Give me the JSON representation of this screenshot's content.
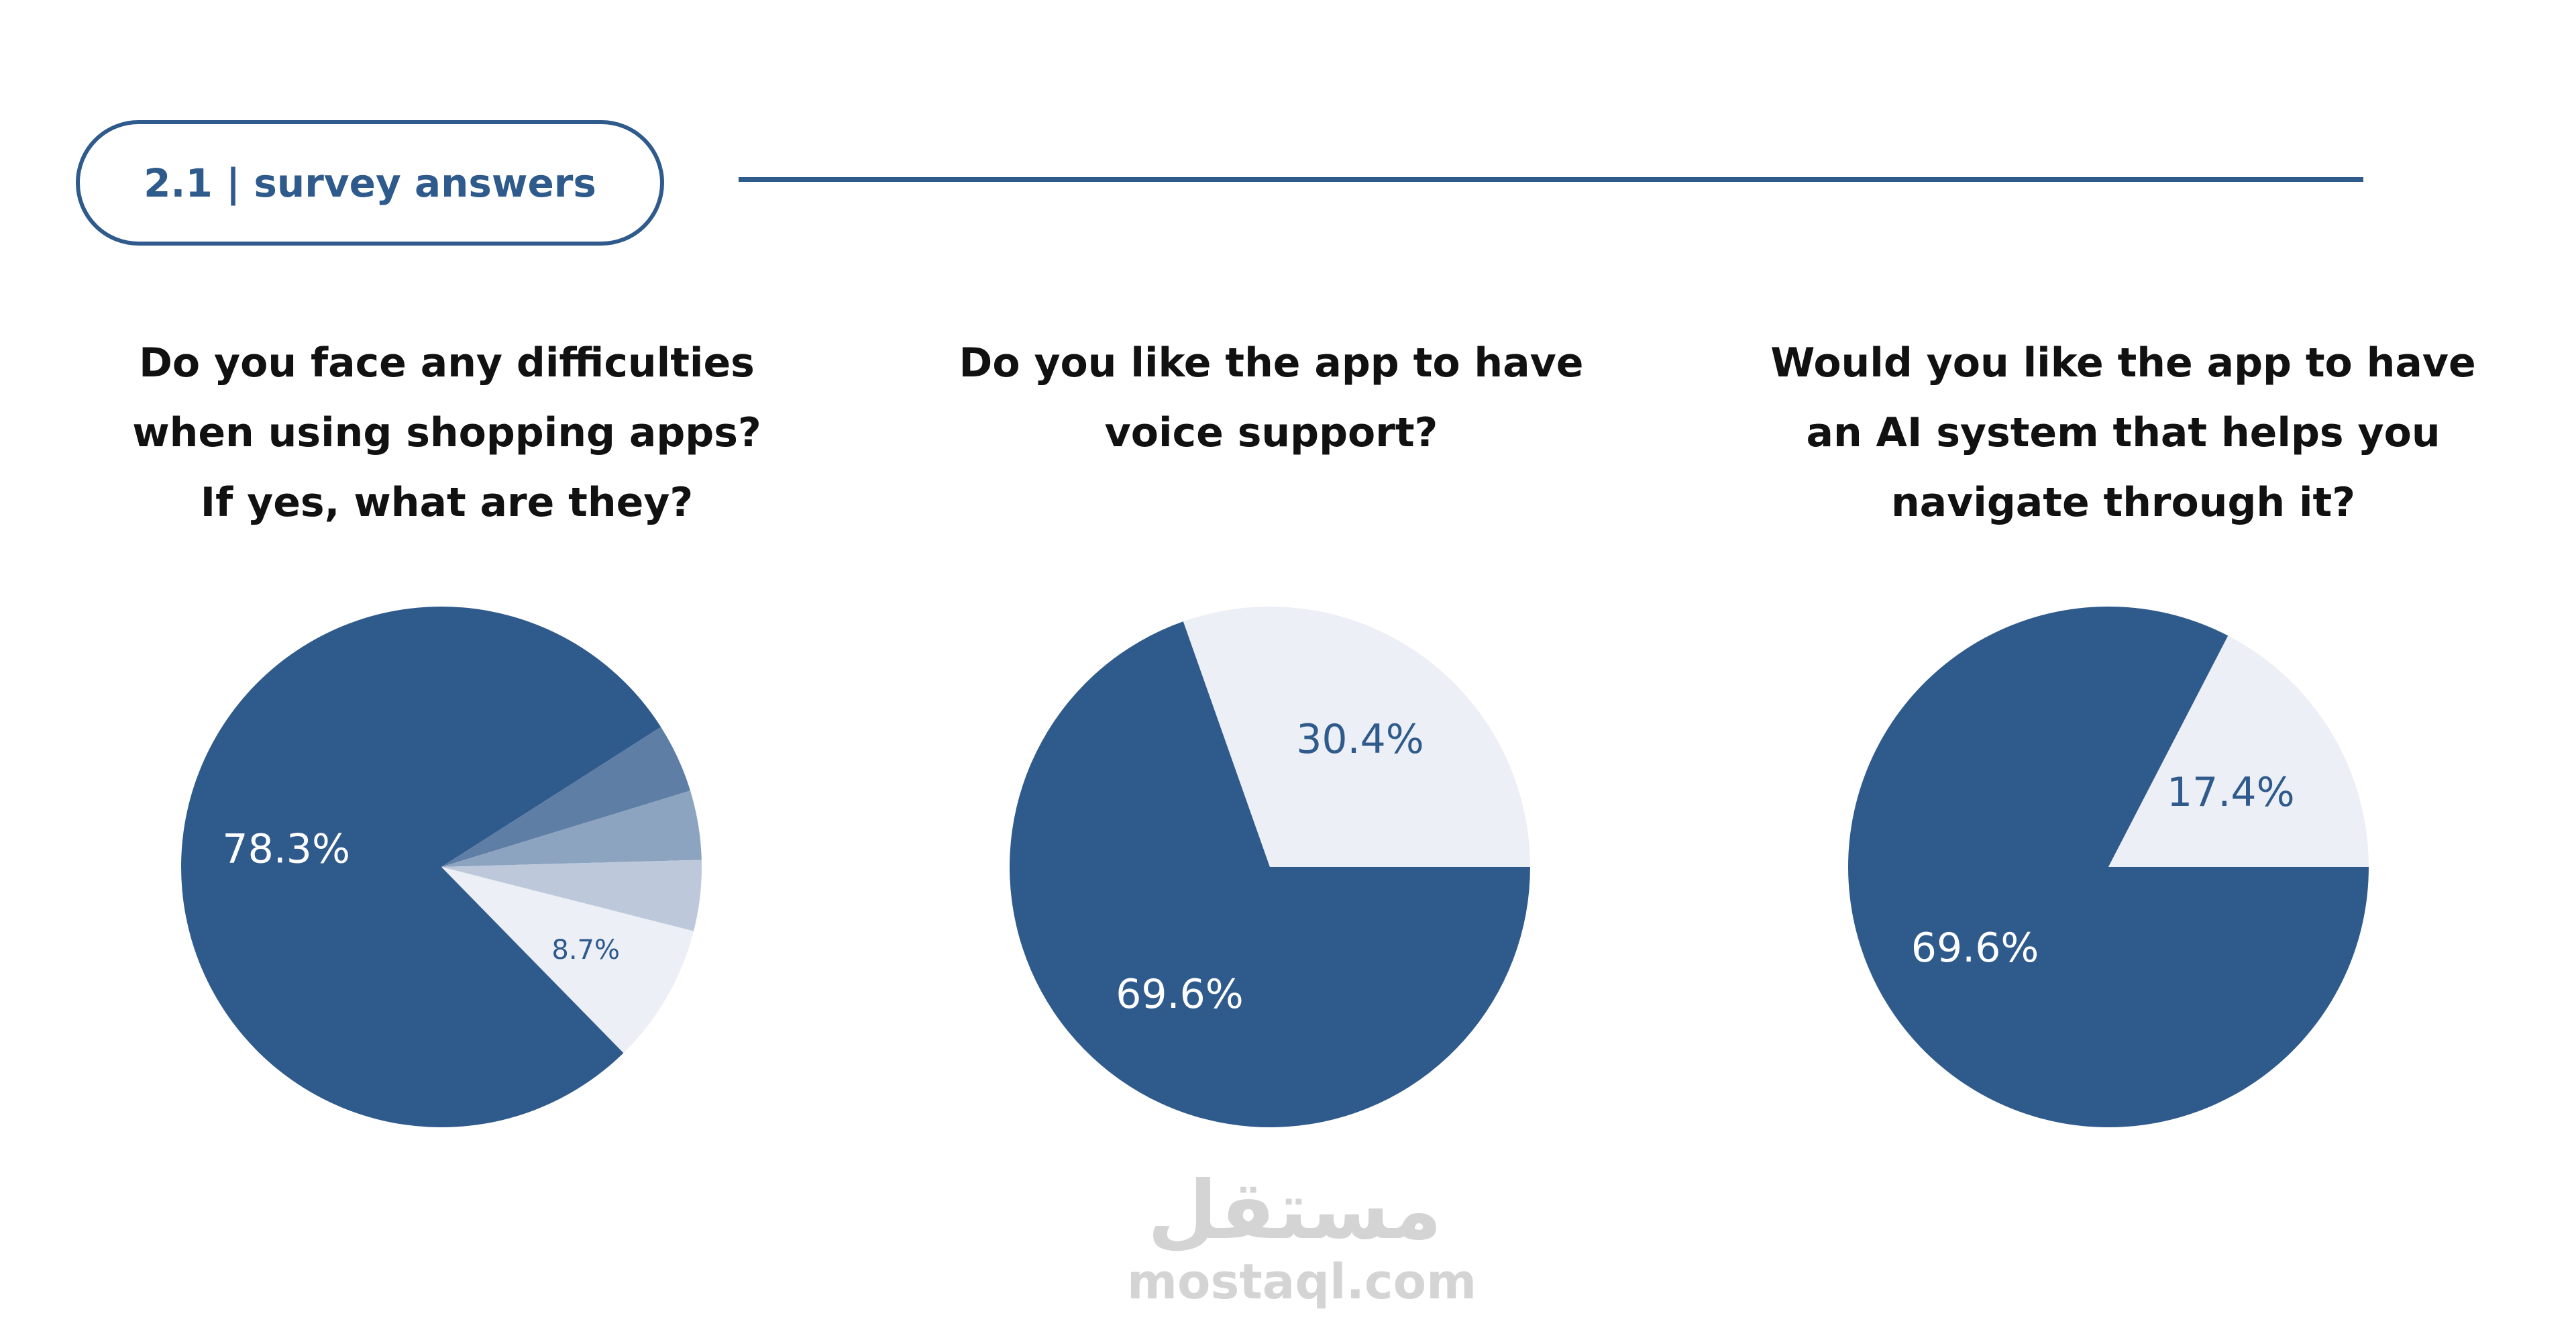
{
  "header": {
    "section_title": "2.1 | survey answers"
  },
  "questions": [
    {
      "lines": [
        "Do you face any difficulties",
        "when using shopping apps?",
        "If yes, what are they?"
      ]
    },
    {
      "lines": [
        "Do you like the app to have",
        "voice support?"
      ]
    },
    {
      "lines": [
        "Would you like the app to have",
        "an AI system that helps you",
        "navigate through it?"
      ]
    }
  ],
  "colors": {
    "primary": "#2f5a8c",
    "light": "#eceff5"
  },
  "chart_data": [
    {
      "type": "pie",
      "question_index": 0,
      "slices": [
        {
          "value": 78.3,
          "label": "78.3%",
          "color": "#2f5a8c",
          "label_color": "#ffffff"
        },
        {
          "value": 4.3,
          "label": "",
          "color": "#5e7ea6",
          "label_color": "#ffffff"
        },
        {
          "value": 4.3,
          "label": "",
          "color": "#8da4c1",
          "label_color": "#ffffff"
        },
        {
          "value": 4.4,
          "label": "",
          "color": "#bdc9db",
          "label_color": "#ffffff"
        },
        {
          "value": 8.7,
          "label": "8.7%",
          "color": "#eceff5",
          "label_color": "#2f5a8c"
        }
      ]
    },
    {
      "type": "pie",
      "question_index": 1,
      "slices": [
        {
          "value": 69.6,
          "label": "69.6%",
          "color": "#2f5a8c",
          "label_color": "#ffffff"
        },
        {
          "value": 30.4,
          "label": "30.4%",
          "color": "#eceff5",
          "label_color": "#2f5a8c"
        }
      ]
    },
    {
      "type": "pie",
      "question_index": 2,
      "slices": [
        {
          "value": 69.6,
          "label": "69.6%",
          "color": "#2f5a8c",
          "label_color": "#ffffff"
        },
        {
          "value": 17.4,
          "label": "17.4%",
          "color": "#eceff5",
          "label_color": "#2f5a8c"
        }
      ]
    }
  ],
  "watermark": {
    "arabic": "مستقل",
    "latin": "mostaql.com"
  }
}
